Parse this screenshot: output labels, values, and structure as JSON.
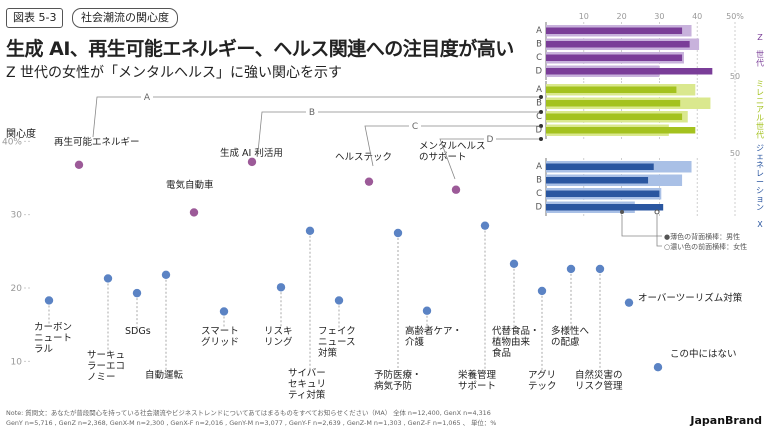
{
  "header": {
    "figure_label": "図表 5-3",
    "category": "社会潮流の関心度",
    "title": "生成 AI、再生可能エネルギー、ヘルス関連への注目度が高い",
    "subtitle": "Z 世代の女性が「メンタルヘルス」に強い関心を示す"
  },
  "footer": {
    "note_line1": "Note: 質問文：あなたが普段関心を持っている社会潮流やビジネストレンドについてあてはまるものをすべてお知らせください（MA） 全体 n=12,400, GenX n=4,316",
    "note_line2": "GenY n=5,716 , GenZ n=2,368, GenX-M n=2,300 , GenX-F n=2,016 , GenY-M n=3,077 , GenY-F n=2,639 , GenZ-M n=1,303 , GenZ-F n=1,065 、 単位：%",
    "brand": "JapanBrand"
  },
  "chart_data": [
    {
      "type": "scatter",
      "ylabel": "関心度",
      "ytick_labels": [
        "40%",
        "30",
        "20",
        "10"
      ],
      "yticks": [
        40,
        30,
        20,
        10
      ],
      "ylim": [
        8,
        44
      ],
      "colors": {
        "highlight": "#9c5a98",
        "normal": "#5b83c4"
      },
      "points": [
        {
          "label": "カーボン\nニュート\nラル",
          "y": 18.3,
          "highlight": false
        },
        {
          "label": "再生可能エネルギー",
          "y": 36.8,
          "highlight": true
        },
        {
          "label": "サーキュ\nラーエコ\nノミー",
          "y": 21.3,
          "highlight": false
        },
        {
          "label": "SDGs",
          "y": 19.3,
          "highlight": false
        },
        {
          "label": "自動運転",
          "y": 21.8,
          "highlight": false
        },
        {
          "label": "電気自動車",
          "y": 30.3,
          "highlight": true
        },
        {
          "label": "スマート\nグリッド",
          "y": 16.8,
          "highlight": false
        },
        {
          "label": "生成 AI 利活用",
          "y": 37.2,
          "highlight": true
        },
        {
          "label": "リスキ\nリング",
          "y": 20.1,
          "highlight": false
        },
        {
          "label": "サイバー\nセキュリ\nティ対策",
          "y": 27.8,
          "highlight": false
        },
        {
          "label": "フェイク\nニュース\n対策",
          "y": 18.3,
          "highlight": false
        },
        {
          "label": "ヘルステック",
          "y": 34.5,
          "highlight": true
        },
        {
          "label": "予防医療・\n病気予防",
          "y": 27.5,
          "highlight": false
        },
        {
          "label": "高齢者ケア・\n介護",
          "y": 16.9,
          "highlight": false
        },
        {
          "label": "メンタルヘルス\nのサポート",
          "y": 33.4,
          "highlight": true
        },
        {
          "label": "栄養管理\nサポート",
          "y": 28.5,
          "highlight": false
        },
        {
          "label": "代替食品・\n植物由来\n食品",
          "y": 23.3,
          "highlight": false
        },
        {
          "label": "アグリ\nテック",
          "y": 19.6,
          "highlight": false
        },
        {
          "label": "多様性へ\nの配慮",
          "y": 22.6,
          "highlight": false
        },
        {
          "label": "自然災害の\nリスク管理",
          "y": 22.6,
          "highlight": false
        },
        {
          "label": "オーバーツーリズム対策",
          "y": 18.0,
          "highlight": false
        },
        {
          "label": "この中にはない",
          "y": 9.2,
          "highlight": false
        }
      ]
    },
    {
      "type": "bar",
      "orientation": "horizontal",
      "xlim": [
        0,
        50
      ],
      "xticks": [
        10,
        20,
        30,
        40,
        50
      ],
      "xtick_top_label": "50%",
      "categories": [
        "A",
        "B",
        "C",
        "D"
      ],
      "category_items": {
        "A": "再生可能エネルギー",
        "B": "生成 AI 利活用",
        "C": "ヘルステック",
        "D": "メンタルヘルスのサポート"
      },
      "legend": {
        "light": "薄色の背面横棒：男性",
        "dark": "濃い色の前面横棒：女性"
      },
      "groups": [
        {
          "name": "Z 世代",
          "color_dark": "#7a3d98",
          "color_light": "#c8b2dc",
          "male": [
            38.5,
            40.5,
            36.5,
            30.0
          ],
          "female": [
            36.0,
            38.0,
            36.0,
            44.0
          ]
        },
        {
          "name": "ミレニアル世代",
          "color_dark": "#a4c21e",
          "color_light": "#dae88e",
          "male": [
            39.5,
            43.5,
            37.5,
            32.5
          ],
          "female": [
            34.5,
            35.5,
            36.0,
            39.5
          ]
        },
        {
          "name": "ジェネレーション X",
          "color_dark": "#2a56a0",
          "color_light": "#a9c0e6",
          "male": [
            38.5,
            36.0,
            30.5,
            23.5
          ],
          "female": [
            28.5,
            27.0,
            30.0,
            31.0
          ]
        }
      ]
    }
  ]
}
